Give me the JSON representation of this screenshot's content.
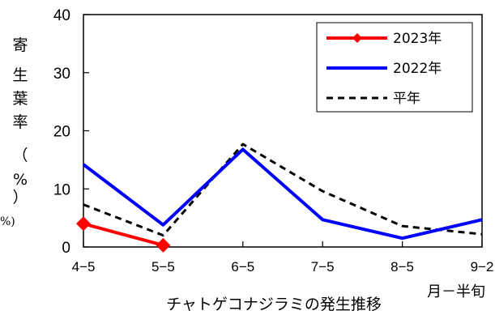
{
  "chart_data": {
    "type": "line",
    "title": "チャトゲコナジラミの発生推移",
    "ylabel_chars": [
      "寄",
      "生",
      "葉",
      "率",
      "（",
      "%",
      "）"
    ],
    "edge_label": "%)",
    "xlabel": "月－半旬",
    "categories": [
      "4−5",
      "5−5",
      "6−5",
      "7−5",
      "8−5",
      "9−2"
    ],
    "ylim": [
      0,
      40
    ],
    "yticks": [
      "0",
      "10",
      "20",
      "30",
      "40"
    ],
    "grid": false,
    "legend_position": "top-right",
    "series": [
      {
        "name": "2023年",
        "color": "#ff0000",
        "style": "solid-diamond",
        "values": [
          4.0,
          0.3,
          null,
          null,
          null,
          null
        ]
      },
      {
        "name": "2022年",
        "color": "#0000ff",
        "style": "solid",
        "values": [
          14.2,
          3.8,
          16.8,
          4.7,
          1.5,
          4.7
        ]
      },
      {
        "name": "平年",
        "color": "#000000",
        "style": "dashed",
        "values": [
          7.3,
          2.0,
          17.7,
          9.6,
          3.6,
          2.2
        ]
      }
    ]
  }
}
